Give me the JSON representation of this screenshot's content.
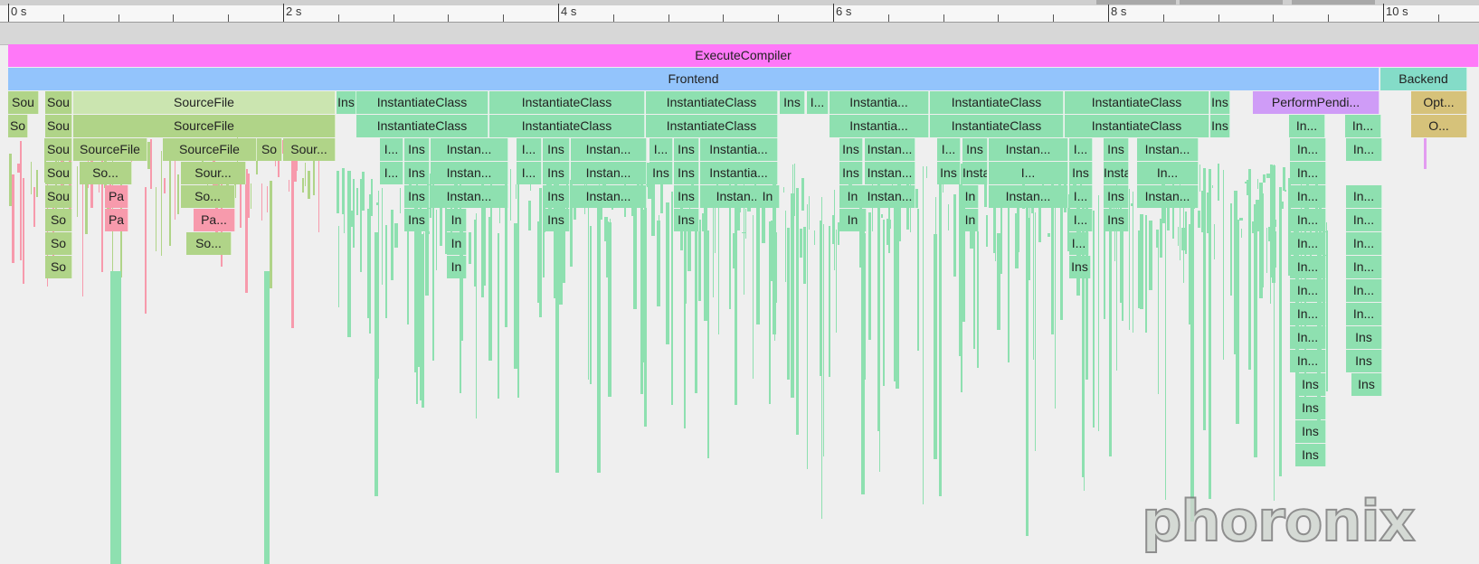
{
  "timeline": {
    "tick_labels": [
      "0 s",
      "2 s",
      "4 s",
      "6 s",
      "8 s",
      "10 s"
    ]
  },
  "colors": {
    "execute": "#ff78f8",
    "frontend": "#93c4fc",
    "backend": "#84dcc8",
    "green": "#8ee0b0",
    "olive": "#b0d488",
    "olive_light": "#cbe5b0",
    "pink": "#f79aac",
    "purple": "#cf9cf7",
    "tan": "#d6c27a"
  },
  "rows": [
    [
      {
        "label": "ExecuteCompiler",
        "color": "execute"
      }
    ],
    [
      {
        "label": "Frontend",
        "color": "frontend"
      },
      {
        "label": "Backend",
        "color": "backend"
      }
    ],
    [
      {
        "label": "Sou",
        "color": "olive"
      },
      {
        "label": "Sou",
        "color": "olive"
      },
      {
        "label": "SourceFile",
        "color": "olive_light"
      },
      {
        "label": "Ins",
        "color": "green"
      },
      {
        "label": "InstantiateClass",
        "color": "green"
      },
      {
        "label": "InstantiateClass",
        "color": "green"
      },
      {
        "label": "InstantiateClass",
        "color": "green"
      },
      {
        "label": "Ins",
        "color": "green"
      },
      {
        "label": "I...",
        "color": "green"
      },
      {
        "label": "Instantia...",
        "color": "green"
      },
      {
        "label": "InstantiateClass",
        "color": "green"
      },
      {
        "label": "InstantiateClass",
        "color": "green"
      },
      {
        "label": "Ins",
        "color": "green"
      },
      {
        "label": "PerformPendi...",
        "color": "purple"
      },
      {
        "label": "Opt...",
        "color": "tan"
      }
    ],
    [
      {
        "label": "So",
        "color": "olive"
      },
      {
        "label": "Sou",
        "color": "olive"
      },
      {
        "label": "SourceFile",
        "color": "olive"
      },
      {
        "label": "InstantiateClass",
        "color": "green"
      },
      {
        "label": "InstantiateClass",
        "color": "green"
      },
      {
        "label": "InstantiateClass",
        "color": "green"
      },
      {
        "label": "Instantia...",
        "color": "green"
      },
      {
        "label": "InstantiateClass",
        "color": "green"
      },
      {
        "label": "InstantiateClass",
        "color": "green"
      },
      {
        "label": "Ins",
        "color": "green"
      },
      {
        "label": "In...",
        "color": "green"
      },
      {
        "label": "In...",
        "color": "green"
      },
      {
        "label": "O...",
        "color": "tan"
      }
    ],
    [
      {
        "label": "Sou",
        "color": "olive"
      },
      {
        "label": "SourceFile",
        "color": "olive"
      },
      {
        "label": "SourceFile",
        "color": "olive"
      },
      {
        "label": "So",
        "color": "olive"
      },
      {
        "label": "Sour...",
        "color": "olive"
      },
      {
        "label": "I...",
        "color": "green"
      },
      {
        "label": "Ins",
        "color": "green"
      },
      {
        "label": "Instan...",
        "color": "green"
      },
      {
        "label": "I...",
        "color": "green"
      },
      {
        "label": "Ins",
        "color": "green"
      },
      {
        "label": "Instan...",
        "color": "green"
      },
      {
        "label": "I...",
        "color": "green"
      },
      {
        "label": "Ins",
        "color": "green"
      },
      {
        "label": "Instantia...",
        "color": "green"
      },
      {
        "label": "Ins",
        "color": "green"
      },
      {
        "label": "Instan...",
        "color": "green"
      },
      {
        "label": "I...",
        "color": "green"
      },
      {
        "label": "Ins",
        "color": "green"
      },
      {
        "label": "Instan...",
        "color": "green"
      },
      {
        "label": "I...",
        "color": "green"
      },
      {
        "label": "Ins",
        "color": "green"
      },
      {
        "label": "Instan...",
        "color": "green"
      },
      {
        "label": "In...",
        "color": "green"
      },
      {
        "label": "In...",
        "color": "green"
      }
    ],
    [
      {
        "label": "Sou",
        "color": "olive"
      },
      {
        "label": "So...",
        "color": "olive"
      },
      {
        "label": "Sour...",
        "color": "olive"
      },
      {
        "label": "I...",
        "color": "green"
      },
      {
        "label": "Ins",
        "color": "green"
      },
      {
        "label": "Instan...",
        "color": "green"
      },
      {
        "label": "I...",
        "color": "green"
      },
      {
        "label": "Ins",
        "color": "green"
      },
      {
        "label": "Instan...",
        "color": "green"
      },
      {
        "label": "Ins",
        "color": "green"
      },
      {
        "label": "Ins",
        "color": "green"
      },
      {
        "label": "Instantia...",
        "color": "green"
      },
      {
        "label": "Ins",
        "color": "green"
      },
      {
        "label": "Instan...",
        "color": "green"
      },
      {
        "label": "Ins",
        "color": "green"
      },
      {
        "label": "Instan...",
        "color": "green"
      },
      {
        "label": "I...",
        "color": "green"
      },
      {
        "label": "Ins",
        "color": "green"
      },
      {
        "label": "Instan...",
        "color": "green"
      },
      {
        "label": "In...",
        "color": "green"
      },
      {
        "label": "In...",
        "color": "green"
      }
    ],
    [
      {
        "label": "Sou",
        "color": "olive"
      },
      {
        "label": "Pa",
        "color": "pink"
      },
      {
        "label": "So...",
        "color": "olive"
      },
      {
        "label": "Ins",
        "color": "green"
      },
      {
        "label": "Instan...",
        "color": "green"
      },
      {
        "label": "Ins",
        "color": "green"
      },
      {
        "label": "Instan...",
        "color": "green"
      },
      {
        "label": "Ins",
        "color": "green"
      },
      {
        "label": "Instan...",
        "color": "green"
      },
      {
        "label": "In",
        "color": "green"
      },
      {
        "label": "In",
        "color": "green"
      },
      {
        "label": "Instan...",
        "color": "green"
      },
      {
        "label": "In",
        "color": "green"
      },
      {
        "label": "Instan...",
        "color": "green"
      },
      {
        "label": "I...",
        "color": "green"
      },
      {
        "label": "Ins",
        "color": "green"
      },
      {
        "label": "Instan...",
        "color": "green"
      },
      {
        "label": "In...",
        "color": "green"
      },
      {
        "label": "In...",
        "color": "green"
      }
    ],
    [
      {
        "label": "So",
        "color": "olive"
      },
      {
        "label": "Pa",
        "color": "pink"
      },
      {
        "label": "Pa...",
        "color": "pink"
      },
      {
        "label": "Ins",
        "color": "green"
      },
      {
        "label": "In",
        "color": "green"
      },
      {
        "label": "Ins",
        "color": "green"
      },
      {
        "label": "Ins",
        "color": "green"
      },
      {
        "label": "In",
        "color": "green"
      },
      {
        "label": "In",
        "color": "green"
      },
      {
        "label": "I...",
        "color": "green"
      },
      {
        "label": "Ins",
        "color": "green"
      },
      {
        "label": "In...",
        "color": "green"
      },
      {
        "label": "In...",
        "color": "green"
      }
    ],
    [
      {
        "label": "So",
        "color": "olive"
      },
      {
        "label": "So...",
        "color": "olive"
      },
      {
        "label": "In",
        "color": "green"
      },
      {
        "label": "I...",
        "color": "green"
      },
      {
        "label": "In...",
        "color": "green"
      },
      {
        "label": "In...",
        "color": "green"
      }
    ],
    [
      {
        "label": "So",
        "color": "olive"
      },
      {
        "label": "In",
        "color": "green"
      },
      {
        "label": "Ins",
        "color": "green"
      },
      {
        "label": "In...",
        "color": "green"
      },
      {
        "label": "In...",
        "color": "green"
      }
    ],
    [
      {
        "label": "In...",
        "color": "green"
      },
      {
        "label": "In...",
        "color": "green"
      }
    ],
    [
      {
        "label": "In...",
        "color": "green"
      },
      {
        "label": "In...",
        "color": "green"
      }
    ],
    [
      {
        "label": "In...",
        "color": "green"
      },
      {
        "label": "Ins",
        "color": "green"
      }
    ],
    [
      {
        "label": "In...",
        "color": "green"
      },
      {
        "label": "Ins",
        "color": "green"
      }
    ],
    [
      {
        "label": "Ins",
        "color": "green"
      },
      {
        "label": "Ins",
        "color": "green"
      }
    ],
    [
      {
        "label": "Ins",
        "color": "green"
      }
    ],
    [
      {
        "label": "Ins",
        "color": "green"
      }
    ],
    [
      {
        "label": "Ins",
        "color": "green"
      }
    ]
  ],
  "watermark": "phoronix"
}
